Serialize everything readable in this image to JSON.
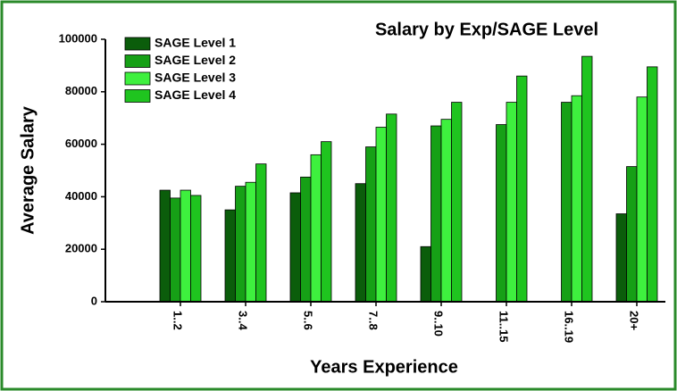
{
  "chart_data": {
    "type": "bar",
    "title": "Salary by Exp/SAGE Level",
    "x_label": "Years Experience",
    "y_label": "Average Salary",
    "categories": [
      "1..2",
      "3..4",
      "5..6",
      "7..8",
      "9..10",
      "11..15",
      "16..19",
      "20+"
    ],
    "series": [
      {
        "name": "SAGE Level 1",
        "color": "#0b5d0b",
        "values": [
          42500,
          35000,
          41500,
          45000,
          21000,
          null,
          null,
          33500
        ]
      },
      {
        "name": "SAGE Level 2",
        "color": "#16a016",
        "values": [
          39500,
          44000,
          47500,
          59000,
          67000,
          67500,
          76000,
          51500
        ]
      },
      {
        "name": "SAGE Level 3",
        "color": "#3ef03e",
        "values": [
          42500,
          45500,
          56000,
          66500,
          69500,
          76000,
          78500,
          78000
        ]
      },
      {
        "name": "SAGE Level 4",
        "color": "#1fc41f",
        "values": [
          40500,
          52500,
          61000,
          71500,
          76000,
          86000,
          93500,
          89500
        ]
      }
    ],
    "ylim": [
      0,
      100000
    ],
    "yticks": [
      0,
      20000,
      40000,
      60000,
      80000,
      100000
    ],
    "grid": false,
    "legend": "upper left"
  }
}
